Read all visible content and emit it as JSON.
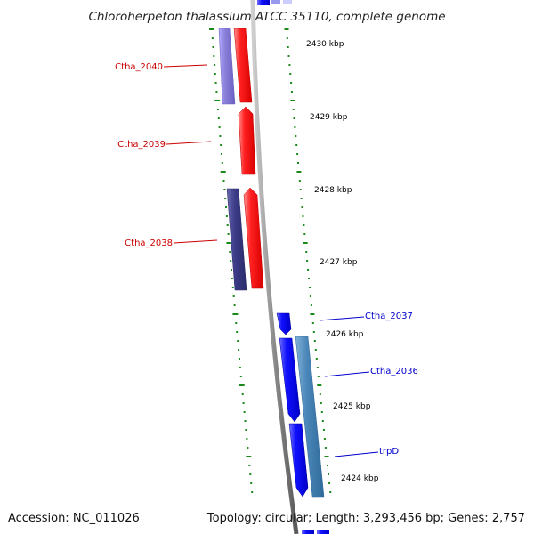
{
  "title": "Chloroherpeton thalassium ATCC 35110, complete genome",
  "footer": {
    "accession": "Accession: NC_011026",
    "summary": "Topology: circular; Length: 3,293,456 bp; Genes: 2,757"
  },
  "scale_ticks": [
    {
      "label": "2430 kbp"
    },
    {
      "label": "2429 kbp"
    },
    {
      "label": "2428 kbp"
    },
    {
      "label": "2427 kbp"
    },
    {
      "label": "2426 kbp"
    },
    {
      "label": "2425 kbp"
    },
    {
      "label": "2424 kbp"
    }
  ],
  "genes": [
    {
      "name": "Ctha_2040",
      "strand": "reverse"
    },
    {
      "name": "Ctha_2039",
      "strand": "reverse"
    },
    {
      "name": "Ctha_2038",
      "strand": "reverse"
    },
    {
      "name": "Ctha_2037",
      "strand": "forward"
    },
    {
      "name": "Ctha_2036",
      "strand": "forward"
    },
    {
      "name": "trpD",
      "strand": "forward"
    }
  ],
  "colors": {
    "forward_cds": "#0000ee",
    "reverse_cds": "#ff0000",
    "forward_label": "#0000cc",
    "reverse_label": "#cc0000",
    "forward_feature": "#4a86b8",
    "reverse_feature": "#8a7fd8",
    "reverse_feature_dark": "#3c3c88",
    "backbone": "#888888",
    "tick": "#1a8a1a"
  }
}
